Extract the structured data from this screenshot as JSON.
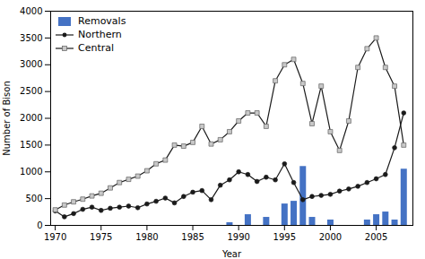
{
  "chart_data": {
    "type": "combo",
    "xlabel": "Year",
    "ylabel": "Number of Bison",
    "x": [
      1970,
      1971,
      1972,
      1973,
      1974,
      1975,
      1976,
      1977,
      1978,
      1979,
      1980,
      1981,
      1982,
      1983,
      1984,
      1985,
      1986,
      1987,
      1988,
      1989,
      1990,
      1991,
      1992,
      1993,
      1994,
      1995,
      1996,
      1997,
      1998,
      1999,
      2000,
      2001,
      2002,
      2003,
      2004,
      2005,
      2006,
      2007,
      2008
    ],
    "series": [
      {
        "name": "Removals",
        "type": "bar",
        "color": "#4472C4",
        "values": [
          0,
          0,
          0,
          0,
          0,
          0,
          0,
          0,
          0,
          0,
          0,
          0,
          0,
          0,
          0,
          0,
          0,
          0,
          0,
          50,
          0,
          200,
          0,
          150,
          0,
          400,
          450,
          1100,
          150,
          0,
          100,
          0,
          0,
          0,
          100,
          200,
          250,
          100,
          1050
        ]
      },
      {
        "name": "Northern",
        "type": "line",
        "color": "#1a1a1a",
        "marker": "circle",
        "values": [
          270,
          160,
          220,
          300,
          340,
          280,
          320,
          340,
          360,
          330,
          400,
          450,
          510,
          420,
          540,
          620,
          650,
          480,
          750,
          850,
          1000,
          950,
          820,
          900,
          850,
          1150,
          800,
          480,
          540,
          560,
          580,
          640,
          680,
          730,
          800,
          870,
          950,
          1450,
          2100
        ]
      },
      {
        "name": "Central",
        "type": "line",
        "color": "#1a1a1a",
        "marker": "square",
        "values": [
          290,
          380,
          440,
          490,
          550,
          600,
          700,
          800,
          860,
          920,
          1020,
          1150,
          1220,
          1500,
          1480,
          1550,
          1850,
          1520,
          1600,
          1750,
          1950,
          2100,
          2100,
          1850,
          2700,
          3000,
          3100,
          2650,
          1900,
          2600,
          1750,
          1400,
          1950,
          2950,
          3300,
          3500,
          2950,
          2600,
          1500
        ]
      }
    ],
    "xlim": [
      1969.5,
      2009
    ],
    "xticks": [
      1970,
      1975,
      1980,
      1985,
      1990,
      1995,
      2000,
      2005
    ],
    "ylim": [
      0,
      4000
    ],
    "yticks": [
      0,
      500,
      1000,
      1500,
      2000,
      2500,
      3000,
      3500,
      4000
    ],
    "grid": false,
    "legend": "upper left"
  }
}
